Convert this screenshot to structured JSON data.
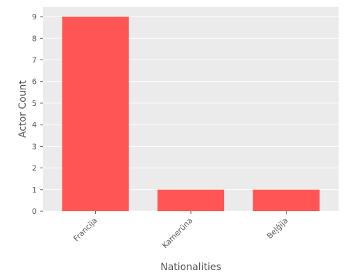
{
  "chart_data": {
    "type": "bar",
    "title": "",
    "xlabel": "Nationalities",
    "ylabel": "Actor Count",
    "categories": [
      "Francija",
      "Kamerūna",
      "Beļģija"
    ],
    "values": [
      9,
      1,
      1
    ],
    "ylim": [
      0,
      9.45
    ],
    "yticks": [
      0,
      1,
      2,
      3,
      4,
      5,
      6,
      7,
      8,
      9
    ],
    "grid": true,
    "legend": "none",
    "colors": {
      "bar": "#ff5555",
      "plot_background": "#ebebeb",
      "grid": "#ffffff",
      "text": "#555555"
    }
  }
}
